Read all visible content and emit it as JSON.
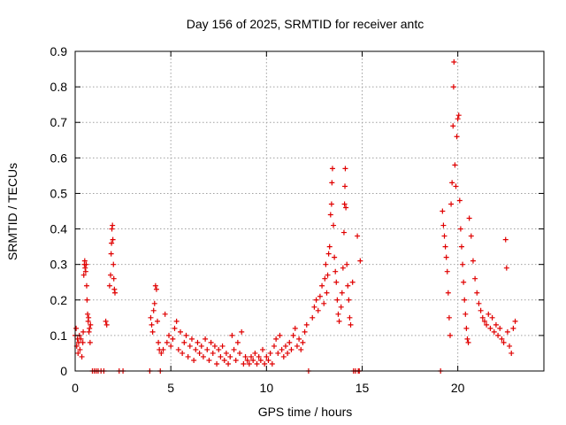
{
  "chart_data": {
    "type": "scatter",
    "title": "Day 156 of 2025, SRMTID for receiver antc",
    "xlabel": "GPS time / hours",
    "ylabel": "SRMTID / TECUs",
    "xlim": [
      0,
      24.5
    ],
    "ylim": [
      0,
      0.9
    ],
    "xticks": [
      0,
      5,
      10,
      15,
      20
    ],
    "yticks": [
      0,
      0.1,
      0.2,
      0.3,
      0.4,
      0.5,
      0.6,
      0.7,
      0.8,
      0.9
    ],
    "xtick_labels": [
      "0",
      "5",
      "10",
      "15",
      "20"
    ],
    "ytick_labels": [
      "0",
      "0.1",
      "0.2",
      "0.3",
      "0.4",
      "0.5",
      "0.6",
      "0.7",
      "0.8",
      "0.9"
    ],
    "grid": true,
    "marker": "+",
    "color": "#e00000",
    "series": [
      {
        "name": "SRMTID",
        "points": [
          [
            0.0,
            0.1
          ],
          [
            0.05,
            0.12
          ],
          [
            0.08,
            0.07
          ],
          [
            0.12,
            0.09
          ],
          [
            0.15,
            0.05
          ],
          [
            0.18,
            0.08
          ],
          [
            0.22,
            0.1
          ],
          [
            0.25,
            0.06
          ],
          [
            0.3,
            0.09
          ],
          [
            0.35,
            0.04
          ],
          [
            0.4,
            0.08
          ],
          [
            0.42,
            0.11
          ],
          [
            0.45,
            0.27
          ],
          [
            0.48,
            0.3
          ],
          [
            0.5,
            0.31
          ],
          [
            0.52,
            0.29
          ],
          [
            0.55,
            0.28
          ],
          [
            0.58,
            0.3
          ],
          [
            0.6,
            0.24
          ],
          [
            0.62,
            0.2
          ],
          [
            0.65,
            0.16
          ],
          [
            0.68,
            0.14
          ],
          [
            0.7,
            0.15
          ],
          [
            0.72,
            0.11
          ],
          [
            0.75,
            0.12
          ],
          [
            0.78,
            0.08
          ],
          [
            0.8,
            0.13
          ],
          [
            0.9,
            0.0
          ],
          [
            1.0,
            0.0
          ],
          [
            1.1,
            0.0
          ],
          [
            1.2,
            0.0
          ],
          [
            1.35,
            0.0
          ],
          [
            1.5,
            0.0
          ],
          [
            1.6,
            0.14
          ],
          [
            1.65,
            0.13
          ],
          [
            1.8,
            0.24
          ],
          [
            1.85,
            0.27
          ],
          [
            1.88,
            0.33
          ],
          [
            1.9,
            0.36
          ],
          [
            1.92,
            0.4
          ],
          [
            1.95,
            0.41
          ],
          [
            1.97,
            0.37
          ],
          [
            2.0,
            0.3
          ],
          [
            2.02,
            0.26
          ],
          [
            2.05,
            0.23
          ],
          [
            2.08,
            0.22
          ],
          [
            2.3,
            0.0
          ],
          [
            2.5,
            0.0
          ],
          [
            3.9,
            0.0
          ],
          [
            3.95,
            0.15
          ],
          [
            4.0,
            0.13
          ],
          [
            4.05,
            0.11
          ],
          [
            4.1,
            0.17
          ],
          [
            4.15,
            0.19
          ],
          [
            4.2,
            0.24
          ],
          [
            4.25,
            0.23
          ],
          [
            4.3,
            0.14
          ],
          [
            4.35,
            0.08
          ],
          [
            4.4,
            0.06
          ],
          [
            4.45,
            0.0
          ],
          [
            4.5,
            0.05
          ],
          [
            4.6,
            0.06
          ],
          [
            4.7,
            0.16
          ],
          [
            4.8,
            0.08
          ],
          [
            4.9,
            0.1
          ],
          [
            5.0,
            0.07
          ],
          [
            5.1,
            0.09
          ],
          [
            5.2,
            0.12
          ],
          [
            5.3,
            0.14
          ],
          [
            5.4,
            0.06
          ],
          [
            5.5,
            0.11
          ],
          [
            5.6,
            0.05
          ],
          [
            5.7,
            0.08
          ],
          [
            5.8,
            0.1
          ],
          [
            5.9,
            0.04
          ],
          [
            6.0,
            0.07
          ],
          [
            6.1,
            0.09
          ],
          [
            6.2,
            0.03
          ],
          [
            6.3,
            0.06
          ],
          [
            6.4,
            0.08
          ],
          [
            6.5,
            0.05
          ],
          [
            6.6,
            0.07
          ],
          [
            6.7,
            0.04
          ],
          [
            6.8,
            0.09
          ],
          [
            6.9,
            0.06
          ],
          [
            7.0,
            0.03
          ],
          [
            7.1,
            0.08
          ],
          [
            7.2,
            0.05
          ],
          [
            7.3,
            0.07
          ],
          [
            7.4,
            0.02
          ],
          [
            7.5,
            0.06
          ],
          [
            7.6,
            0.04
          ],
          [
            7.7,
            0.07
          ],
          [
            7.8,
            0.03
          ],
          [
            7.9,
            0.05
          ],
          [
            8.0,
            0.02
          ],
          [
            8.1,
            0.04
          ],
          [
            8.2,
            0.1
          ],
          [
            8.3,
            0.06
          ],
          [
            8.4,
            0.03
          ],
          [
            8.5,
            0.08
          ],
          [
            8.6,
            0.05
          ],
          [
            8.7,
            0.11
          ],
          [
            8.8,
            0.02
          ],
          [
            8.9,
            0.04
          ],
          [
            9.0,
            0.03
          ],
          [
            9.1,
            0.02
          ],
          [
            9.2,
            0.04
          ],
          [
            9.3,
            0.03
          ],
          [
            9.4,
            0.05
          ],
          [
            9.5,
            0.02
          ],
          [
            9.6,
            0.04
          ],
          [
            9.7,
            0.03
          ],
          [
            9.8,
            0.06
          ],
          [
            9.9,
            0.02
          ],
          [
            10.0,
            0.04
          ],
          [
            10.1,
            0.03
          ],
          [
            10.2,
            0.05
          ],
          [
            10.3,
            0.02
          ],
          [
            10.4,
            0.07
          ],
          [
            10.5,
            0.09
          ],
          [
            10.6,
            0.05
          ],
          [
            10.7,
            0.1
          ],
          [
            10.8,
            0.06
          ],
          [
            10.9,
            0.04
          ],
          [
            11.0,
            0.07
          ],
          [
            11.1,
            0.05
          ],
          [
            11.2,
            0.08
          ],
          [
            11.3,
            0.06
          ],
          [
            11.4,
            0.1
          ],
          [
            11.5,
            0.12
          ],
          [
            11.6,
            0.07
          ],
          [
            11.7,
            0.09
          ],
          [
            11.8,
            0.06
          ],
          [
            11.9,
            0.08
          ],
          [
            12.0,
            0.11
          ],
          [
            12.1,
            0.13
          ],
          [
            12.2,
            0.0
          ],
          [
            12.4,
            0.15
          ],
          [
            12.5,
            0.18
          ],
          [
            12.6,
            0.2
          ],
          [
            12.7,
            0.17
          ],
          [
            12.8,
            0.21
          ],
          [
            12.9,
            0.24
          ],
          [
            13.0,
            0.19
          ],
          [
            13.05,
            0.26
          ],
          [
            13.1,
            0.3
          ],
          [
            13.15,
            0.22
          ],
          [
            13.2,
            0.27
          ],
          [
            13.25,
            0.33
          ],
          [
            13.3,
            0.35
          ],
          [
            13.35,
            0.44
          ],
          [
            13.4,
            0.47
          ],
          [
            13.42,
            0.53
          ],
          [
            13.45,
            0.57
          ],
          [
            13.5,
            0.41
          ],
          [
            13.55,
            0.32
          ],
          [
            13.6,
            0.28
          ],
          [
            13.65,
            0.25
          ],
          [
            13.7,
            0.2
          ],
          [
            13.75,
            0.16
          ],
          [
            13.8,
            0.14
          ],
          [
            13.9,
            0.18
          ],
          [
            13.95,
            0.22
          ],
          [
            14.0,
            0.29
          ],
          [
            14.05,
            0.39
          ],
          [
            14.08,
            0.47
          ],
          [
            14.1,
            0.52
          ],
          [
            14.12,
            0.57
          ],
          [
            14.15,
            0.46
          ],
          [
            14.2,
            0.3
          ],
          [
            14.25,
            0.24
          ],
          [
            14.3,
            0.2
          ],
          [
            14.35,
            0.15
          ],
          [
            14.4,
            0.13
          ],
          [
            14.5,
            0.25
          ],
          [
            14.55,
            0.0
          ],
          [
            14.65,
            0.0
          ],
          [
            14.75,
            0.38
          ],
          [
            14.8,
            0.0
          ],
          [
            14.85,
            0.0
          ],
          [
            14.9,
            0.31
          ],
          [
            19.1,
            0.0
          ],
          [
            19.2,
            0.45
          ],
          [
            19.25,
            0.41
          ],
          [
            19.3,
            0.38
          ],
          [
            19.35,
            0.35
          ],
          [
            19.4,
            0.32
          ],
          [
            19.45,
            0.28
          ],
          [
            19.5,
            0.22
          ],
          [
            19.55,
            0.15
          ],
          [
            19.6,
            0.1
          ],
          [
            19.65,
            0.47
          ],
          [
            19.7,
            0.53
          ],
          [
            19.75,
            0.69
          ],
          [
            19.78,
            0.8
          ],
          [
            19.8,
            0.87
          ],
          [
            19.85,
            0.58
          ],
          [
            19.9,
            0.52
          ],
          [
            19.95,
            0.66
          ],
          [
            20.0,
            0.71
          ],
          [
            20.05,
            0.72
          ],
          [
            20.1,
            0.48
          ],
          [
            20.15,
            0.4
          ],
          [
            20.2,
            0.35
          ],
          [
            20.25,
            0.3
          ],
          [
            20.3,
            0.25
          ],
          [
            20.35,
            0.2
          ],
          [
            20.4,
            0.16
          ],
          [
            20.45,
            0.12
          ],
          [
            20.5,
            0.09
          ],
          [
            20.55,
            0.08
          ],
          [
            20.6,
            0.43
          ],
          [
            20.7,
            0.38
          ],
          [
            20.8,
            0.31
          ],
          [
            20.9,
            0.26
          ],
          [
            21.0,
            0.22
          ],
          [
            21.1,
            0.19
          ],
          [
            21.2,
            0.17
          ],
          [
            21.3,
            0.15
          ],
          [
            21.4,
            0.14
          ],
          [
            21.5,
            0.13
          ],
          [
            21.6,
            0.16
          ],
          [
            21.7,
            0.12
          ],
          [
            21.8,
            0.15
          ],
          [
            21.9,
            0.11
          ],
          [
            22.0,
            0.13
          ],
          [
            22.1,
            0.1
          ],
          [
            22.2,
            0.12
          ],
          [
            22.3,
            0.09
          ],
          [
            22.4,
            0.08
          ],
          [
            22.5,
            0.37
          ],
          [
            22.55,
            0.29
          ],
          [
            22.6,
            0.11
          ],
          [
            22.7,
            0.07
          ],
          [
            22.8,
            0.05
          ],
          [
            22.9,
            0.12
          ],
          [
            23.0,
            0.14
          ]
        ]
      }
    ]
  }
}
